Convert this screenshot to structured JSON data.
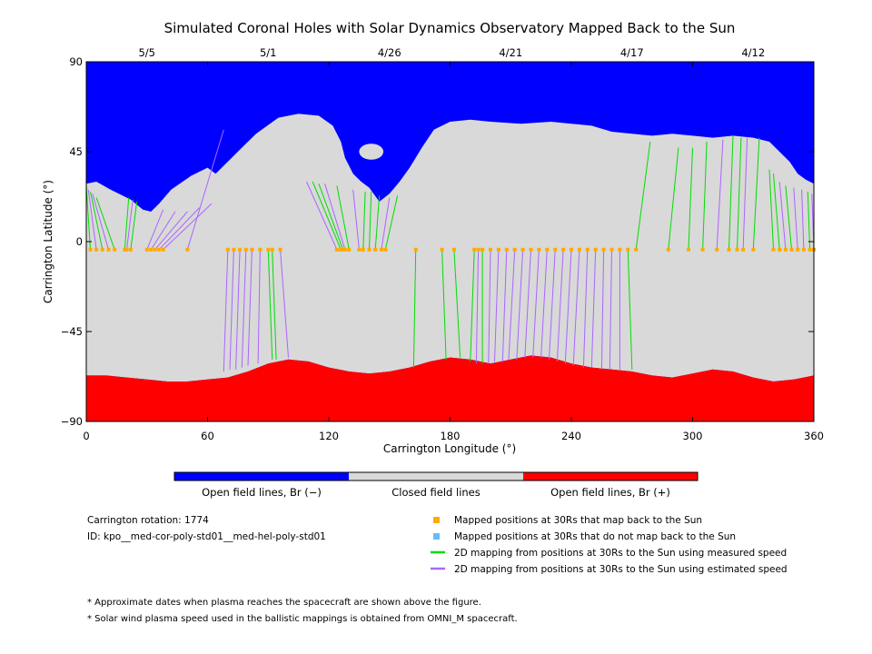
{
  "chart_data": {
    "type": "map",
    "title": "Simulated Coronal Holes with Solar Dynamics Observatory Mapped Back to the Sun",
    "xlabel": "Carrington Longitude (°)",
    "ylabel": "Carrington Latitude (°)",
    "xlim": [
      0,
      360
    ],
    "ylim": [
      -90,
      90
    ],
    "x_ticks": [
      0,
      60,
      120,
      180,
      240,
      300,
      360
    ],
    "y_ticks": [
      -90,
      -45,
      0,
      45,
      90
    ],
    "y_tick_labels": [
      "−90",
      "−45",
      "0",
      "45",
      "90"
    ],
    "top_dates": [
      {
        "label": "5/5",
        "lon": 30
      },
      {
        "label": "5/1",
        "lon": 90
      },
      {
        "label": "4/26",
        "lon": 150
      },
      {
        "label": "4/21",
        "lon": 210
      },
      {
        "label": "4/17",
        "lon": 270
      },
      {
        "label": "4/12",
        "lon": 330
      }
    ],
    "colors": {
      "open_negative": "#0000ff",
      "closed": "#d9d9d9",
      "open_positive": "#ff0000",
      "mapped_point": "#ffaa00",
      "unmapped_point": "#66bbff",
      "measured_line": "#00dd00",
      "estimated_line": "#aa66ff"
    },
    "north_boundary": [
      [
        0,
        29
      ],
      [
        5,
        30
      ],
      [
        12,
        26
      ],
      [
        22,
        21
      ],
      [
        28,
        16
      ],
      [
        32,
        15
      ],
      [
        36,
        19
      ],
      [
        42,
        26
      ],
      [
        52,
        33
      ],
      [
        60,
        37
      ],
      [
        64,
        34
      ],
      [
        70,
        40
      ],
      [
        76,
        46
      ],
      [
        84,
        54
      ],
      [
        95,
        62
      ],
      [
        105,
        64
      ],
      [
        115,
        63
      ],
      [
        122,
        58
      ],
      [
        126,
        50
      ],
      [
        128,
        42
      ],
      [
        132,
        34
      ],
      [
        136,
        30
      ],
      [
        140,
        27
      ],
      [
        145,
        20
      ],
      [
        150,
        24
      ],
      [
        155,
        30
      ],
      [
        160,
        37
      ],
      [
        166,
        47
      ],
      [
        172,
        56
      ],
      [
        180,
        60
      ],
      [
        190,
        61
      ],
      [
        200,
        60
      ],
      [
        215,
        59
      ],
      [
        230,
        60
      ],
      [
        240,
        59
      ],
      [
        250,
        58
      ],
      [
        260,
        55
      ],
      [
        270,
        54
      ],
      [
        280,
        53
      ],
      [
        290,
        54
      ],
      [
        300,
        53
      ],
      [
        310,
        52
      ],
      [
        320,
        53
      ],
      [
        330,
        52
      ],
      [
        338,
        50
      ],
      [
        344,
        44
      ],
      [
        348,
        40
      ],
      [
        352,
        34
      ],
      [
        356,
        31
      ],
      [
        360,
        29
      ]
    ],
    "south_boundary": [
      [
        0,
        -67
      ],
      [
        10,
        -67
      ],
      [
        20,
        -68
      ],
      [
        30,
        -69
      ],
      [
        40,
        -70
      ],
      [
        50,
        -70
      ],
      [
        60,
        -69
      ],
      [
        70,
        -68
      ],
      [
        80,
        -65
      ],
      [
        90,
        -61
      ],
      [
        100,
        -59
      ],
      [
        110,
        -60
      ],
      [
        120,
        -63
      ],
      [
        130,
        -65
      ],
      [
        140,
        -66
      ],
      [
        150,
        -65
      ],
      [
        160,
        -63
      ],
      [
        170,
        -60
      ],
      [
        180,
        -58
      ],
      [
        190,
        -59
      ],
      [
        200,
        -61
      ],
      [
        210,
        -59
      ],
      [
        220,
        -57
      ],
      [
        230,
        -58
      ],
      [
        240,
        -61
      ],
      [
        250,
        -63
      ],
      [
        260,
        -64
      ],
      [
        270,
        -65
      ],
      [
        280,
        -67
      ],
      [
        290,
        -68
      ],
      [
        300,
        -66
      ],
      [
        310,
        -64
      ],
      [
        320,
        -65
      ],
      [
        330,
        -68
      ],
      [
        340,
        -70
      ],
      [
        350,
        -69
      ],
      [
        360,
        -67
      ]
    ],
    "north_polar_island": {
      "lon": 141,
      "lat": 45,
      "dlon": 6,
      "dlat": 4
    },
    "mapped_latitude": -4,
    "mappings": [
      {
        "from": 2,
        "to": 0,
        "lat": 28,
        "kind": "measured"
      },
      {
        "from": 5,
        "to": 1,
        "lat": 26,
        "kind": "estimated"
      },
      {
        "from": 8,
        "to": 2,
        "lat": 25,
        "kind": "measured"
      },
      {
        "from": 11,
        "to": 3,
        "lat": 24,
        "kind": "estimated"
      },
      {
        "from": 14,
        "to": 5,
        "lat": 22,
        "kind": "measured"
      },
      {
        "from": 19,
        "to": 21,
        "lat": 22,
        "kind": "measured"
      },
      {
        "from": 20,
        "to": 23,
        "lat": 21,
        "kind": "estimated"
      },
      {
        "from": 22,
        "to": 25,
        "lat": 20,
        "kind": "measured"
      },
      {
        "from": 30,
        "to": 38,
        "lat": 16,
        "kind": "estimated"
      },
      {
        "from": 32,
        "to": 44,
        "lat": 15,
        "kind": "estimated"
      },
      {
        "from": 34,
        "to": 50,
        "lat": 15,
        "kind": "estimated"
      },
      {
        "from": 36,
        "to": 56,
        "lat": 17,
        "kind": "estimated"
      },
      {
        "from": 38,
        "to": 62,
        "lat": 19,
        "kind": "estimated"
      },
      {
        "from": 50,
        "to": 68,
        "lat": 56,
        "kind": "estimated"
      },
      {
        "from": 124,
        "to": 109,
        "lat": 30,
        "kind": "estimated"
      },
      {
        "from": 126,
        "to": 112,
        "lat": 30,
        "kind": "measured"
      },
      {
        "from": 127,
        "to": 115,
        "lat": 29,
        "kind": "measured"
      },
      {
        "from": 128,
        "to": 118,
        "lat": 29,
        "kind": "estimated"
      },
      {
        "from": 130,
        "to": 124,
        "lat": 28,
        "kind": "measured"
      },
      {
        "from": 135,
        "to": 132,
        "lat": 26,
        "kind": "estimated"
      },
      {
        "from": 137,
        "to": 138,
        "lat": 25,
        "kind": "measured"
      },
      {
        "from": 140,
        "to": 141,
        "lat": 25,
        "kind": "measured"
      },
      {
        "from": 143,
        "to": 145,
        "lat": 23,
        "kind": "measured"
      },
      {
        "from": 146,
        "to": 150,
        "lat": 22,
        "kind": "estimated"
      },
      {
        "from": 148,
        "to": 154,
        "lat": 23,
        "kind": "measured"
      },
      {
        "from": 272,
        "to": 279,
        "lat": 50,
        "kind": "measured"
      },
      {
        "from": 288,
        "to": 293,
        "lat": 47,
        "kind": "measured"
      },
      {
        "from": 298,
        "to": 300,
        "lat": 47,
        "kind": "measured"
      },
      {
        "from": 305,
        "to": 307,
        "lat": 50,
        "kind": "measured"
      },
      {
        "from": 312,
        "to": 315,
        "lat": 51,
        "kind": "estimated"
      },
      {
        "from": 318,
        "to": 320,
        "lat": 53,
        "kind": "measured"
      },
      {
        "from": 322,
        "to": 324,
        "lat": 52,
        "kind": "measured"
      },
      {
        "from": 325,
        "to": 327,
        "lat": 52,
        "kind": "estimated"
      },
      {
        "from": 330,
        "to": 333,
        "lat": 52,
        "kind": "measured"
      },
      {
        "from": 340,
        "to": 338,
        "lat": 36,
        "kind": "measured"
      },
      {
        "from": 343,
        "to": 340,
        "lat": 34,
        "kind": "measured"
      },
      {
        "from": 346,
        "to": 343,
        "lat": 30,
        "kind": "estimated"
      },
      {
        "from": 349,
        "to": 346,
        "lat": 28,
        "kind": "measured"
      },
      {
        "from": 352,
        "to": 350,
        "lat": 27,
        "kind": "estimated"
      },
      {
        "from": 355,
        "to": 354,
        "lat": 26,
        "kind": "estimated"
      },
      {
        "from": 358,
        "to": 357,
        "lat": 25,
        "kind": "measured"
      },
      {
        "from": 360,
        "to": 359,
        "lat": 24,
        "kind": "estimated"
      },
      {
        "from": 70,
        "to": 68,
        "lat": -65,
        "kind": "estimated"
      },
      {
        "from": 73,
        "to": 71,
        "lat": -64,
        "kind": "estimated"
      },
      {
        "from": 76,
        "to": 74,
        "lat": -64,
        "kind": "estimated"
      },
      {
        "from": 79,
        "to": 77,
        "lat": -63,
        "kind": "estimated"
      },
      {
        "from": 82,
        "to": 80,
        "lat": -62,
        "kind": "estimated"
      },
      {
        "from": 86,
        "to": 85,
        "lat": -61,
        "kind": "estimated"
      },
      {
        "from": 90,
        "to": 92,
        "lat": -59,
        "kind": "measured"
      },
      {
        "from": 92,
        "to": 94,
        "lat": -59,
        "kind": "measured"
      },
      {
        "from": 96,
        "to": 100,
        "lat": -58,
        "kind": "estimated"
      },
      {
        "from": 163,
        "to": 162,
        "lat": -63,
        "kind": "measured"
      },
      {
        "from": 176,
        "to": 178,
        "lat": -59,
        "kind": "measured"
      },
      {
        "from": 182,
        "to": 185,
        "lat": -58,
        "kind": "measured"
      },
      {
        "from": 192,
        "to": 190,
        "lat": -60,
        "kind": "measured"
      },
      {
        "from": 194,
        "to": 193,
        "lat": -61,
        "kind": "estimated"
      },
      {
        "from": 196,
        "to": 196,
        "lat": -61,
        "kind": "measured"
      },
      {
        "from": 200,
        "to": 199,
        "lat": -61,
        "kind": "estimated"
      },
      {
        "from": 204,
        "to": 202,
        "lat": -60,
        "kind": "estimated"
      },
      {
        "from": 208,
        "to": 206,
        "lat": -60,
        "kind": "estimated"
      },
      {
        "from": 212,
        "to": 209,
        "lat": -59,
        "kind": "estimated"
      },
      {
        "from": 216,
        "to": 213,
        "lat": -59,
        "kind": "estimated"
      },
      {
        "from": 220,
        "to": 217,
        "lat": -58,
        "kind": "estimated"
      },
      {
        "from": 224,
        "to": 221,
        "lat": -58,
        "kind": "estimated"
      },
      {
        "from": 228,
        "to": 225,
        "lat": -58,
        "kind": "estimated"
      },
      {
        "from": 232,
        "to": 229,
        "lat": -59,
        "kind": "estimated"
      },
      {
        "from": 236,
        "to": 233,
        "lat": -60,
        "kind": "estimated"
      },
      {
        "from": 240,
        "to": 237,
        "lat": -61,
        "kind": "estimated"
      },
      {
        "from": 244,
        "to": 241,
        "lat": -62,
        "kind": "estimated"
      },
      {
        "from": 248,
        "to": 246,
        "lat": -63,
        "kind": "estimated"
      },
      {
        "from": 252,
        "to": 250,
        "lat": -63,
        "kind": "estimated"
      },
      {
        "from": 256,
        "to": 255,
        "lat": -64,
        "kind": "estimated"
      },
      {
        "from": 260,
        "to": 259,
        "lat": -64,
        "kind": "estimated"
      },
      {
        "from": 264,
        "to": 264,
        "lat": -64,
        "kind": "estimated"
      },
      {
        "from": 268,
        "to": 270,
        "lat": -64,
        "kind": "measured"
      }
    ]
  },
  "colorbar": {
    "labels": [
      "Open field lines, Br (−)",
      "Closed field lines",
      "Open field lines, Br (+)"
    ]
  },
  "info": {
    "rotation": "Carrington rotation: 1774",
    "id": "ID: kpo__med-cor-poly-std01__med-hel-poly-std01"
  },
  "legend": [
    {
      "kind": "mapped_point",
      "label": "Mapped positions at 30Rs that map back to the Sun"
    },
    {
      "kind": "unmapped_point",
      "label": "Mapped positions at 30Rs that do not map back to the Sun"
    },
    {
      "kind": "measured_line",
      "label": "2D mapping from positions at 30Rs to the Sun using measured speed"
    },
    {
      "kind": "estimated_line",
      "label": "2D mapping from positions at 30Rs to the Sun using estimated speed"
    }
  ],
  "footnotes": [
    "* Approximate dates when plasma reaches the spacecraft are shown above the figure.",
    "* Solar wind plasma speed used in the ballistic mappings is obtained from OMNI_M spacecraft."
  ]
}
